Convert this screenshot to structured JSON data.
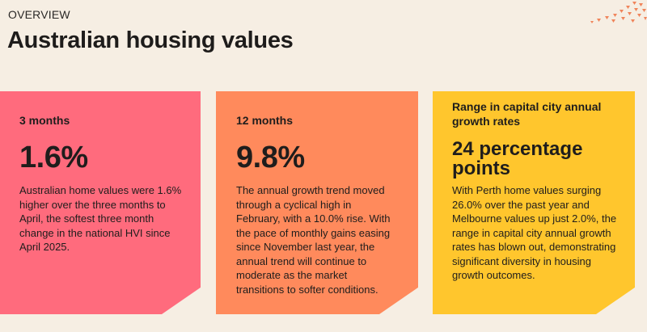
{
  "header": {
    "eyebrow": "OVERVIEW",
    "title": "Australian housing values"
  },
  "colors": {
    "background": "#f6eee3",
    "card_pink": "#ff6b7d",
    "card_orange": "#ff8a5c",
    "card_yellow": "#ffc62d",
    "decor": "#f0845a"
  },
  "cards": [
    {
      "label": "3 months",
      "value": "1.6%",
      "description": "Australian home values were 1.6% higher over the three months to April, the softest three month change in the national HVI since April 2025."
    },
    {
      "label": "12 months",
      "value": "9.8%",
      "description": "The annual growth trend moved through a cyclical high in February, with a 10.0% rise. With the pace of monthly gains easing since November last year, the annual trend will continue to moderate as the market transitions to softer conditions."
    },
    {
      "label": "Range in capital city annual growth rates",
      "value": "24 percentage points",
      "description": "With Perth home values surging 26.0% over the past year and Melbourne values up just 2.0%, the range in capital city annual growth rates has blown out, demonstrating significant diversity in housing growth outcomes."
    }
  ]
}
